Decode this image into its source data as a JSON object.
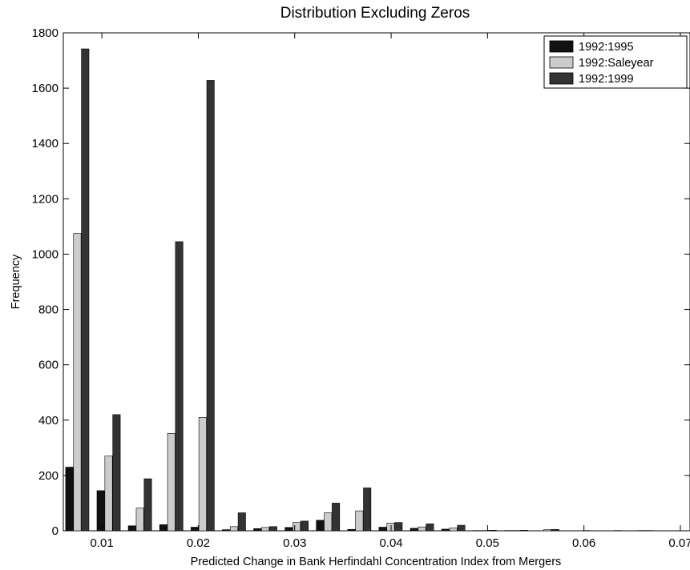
{
  "chart_data": {
    "type": "bar",
    "title": "Distribution Excluding Zeros",
    "xlabel": "Predicted Change in Bank Herfindahl Concentration Index from Mergers",
    "ylabel": "Frequency",
    "xlim": [
      0.006,
      0.071
    ],
    "ylim": [
      0,
      1800
    ],
    "xticks": [
      "0.01",
      "0.02",
      "0.03",
      "0.04",
      "0.05",
      "0.06",
      "0.07"
    ],
    "xtick_values": [
      0.01,
      0.02,
      0.03,
      0.04,
      0.05,
      0.06,
      0.07
    ],
    "yticks": [
      "0",
      "200",
      "400",
      "600",
      "800",
      "1000",
      "1200",
      "1400",
      "1600",
      "1800"
    ],
    "ytick_values": [
      0,
      200,
      400,
      600,
      800,
      1000,
      1200,
      1400,
      1600,
      1800
    ],
    "grid": false,
    "legend_position": "top-right",
    "x": [
      0.00745,
      0.0107,
      0.01395,
      0.0172,
      0.02045,
      0.0237,
      0.02695,
      0.0302,
      0.03345,
      0.0367,
      0.03995,
      0.0432,
      0.04645,
      0.0497,
      0.05295,
      0.0562,
      0.05945,
      0.0627,
      0.06595,
      0.0692
    ],
    "series": [
      {
        "name": "1992:1995",
        "color": "#111111",
        "values": [
          230,
          145,
          18,
          22,
          13,
          4,
          8,
          12,
          38,
          5,
          13,
          9,
          6,
          1,
          1,
          0,
          0,
          0,
          0,
          0
        ]
      },
      {
        "name": "1992:Saleyear",
        "color": "#cccccc",
        "values": [
          1075,
          270,
          82,
          352,
          410,
          15,
          12,
          30,
          65,
          72,
          28,
          14,
          10,
          1,
          1,
          4,
          0,
          0,
          1,
          0
        ]
      },
      {
        "name": "1992:1999",
        "color": "#333333",
        "values": [
          1742,
          420,
          188,
          1045,
          1628,
          65,
          15,
          35,
          100,
          155,
          30,
          25,
          20,
          2,
          2,
          5,
          1,
          1,
          1,
          0
        ]
      }
    ]
  }
}
